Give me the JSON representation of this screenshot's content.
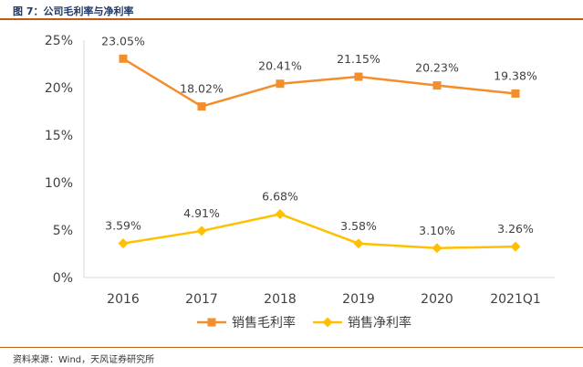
{
  "figure": {
    "title": "图 7：公司毛利率与净利率",
    "source": "资料来源：Wind，天风证券研究所"
  },
  "colors": {
    "gross": "#f28e2b",
    "net": "#ffc000",
    "axis": "#d9d9d9",
    "text": "#404040",
    "accent": "#c55a11"
  },
  "chart_data": {
    "type": "line",
    "categories": [
      "2016",
      "2017",
      "2018",
      "2019",
      "2020",
      "2021Q1"
    ],
    "series": [
      {
        "name": "销售毛利率",
        "values": [
          23.05,
          18.02,
          20.41,
          21.15,
          20.23,
          19.38
        ],
        "labels": [
          "23.05%",
          "18.02%",
          "20.41%",
          "21.15%",
          "20.23%",
          "19.38%"
        ],
        "marker": "square"
      },
      {
        "name": "销售净利率",
        "values": [
          3.59,
          4.91,
          6.68,
          3.58,
          3.1,
          3.26
        ],
        "labels": [
          "3.59%",
          "4.91%",
          "6.68%",
          "3.58%",
          "3.10%",
          "3.26%"
        ],
        "marker": "diamond"
      }
    ],
    "ylim": [
      0,
      25
    ],
    "yticks": [
      0,
      5,
      10,
      15,
      20,
      25
    ],
    "ytick_labels": [
      "0%",
      "5%",
      "10%",
      "15%",
      "20%",
      "25%"
    ],
    "grid": false,
    "legend": "bottom-center"
  }
}
